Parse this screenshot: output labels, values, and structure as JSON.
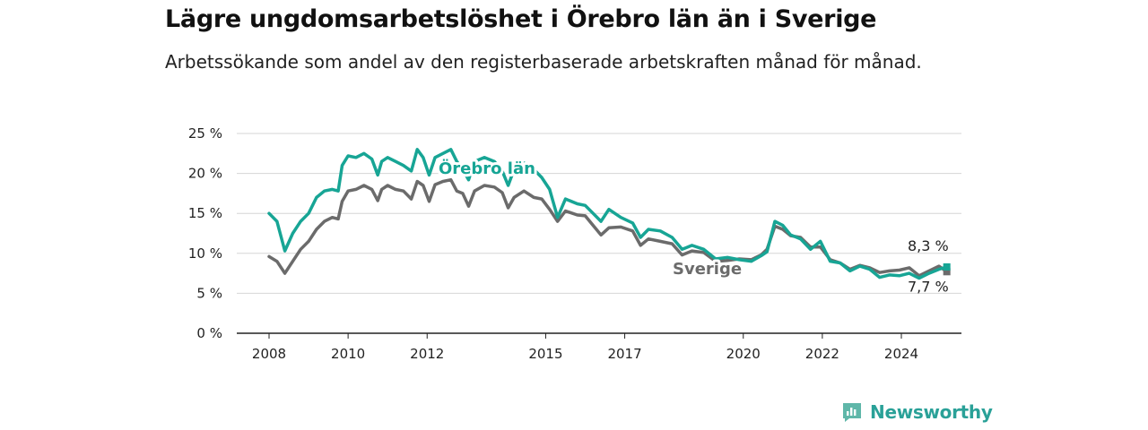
{
  "title": "Lägre ungdomsarbetslöshet i Örebro län än i Sverige",
  "subtitle": "Arbetssökande som andel av den registerbaserade arbetskraften månad för månad.",
  "brand": {
    "name": "Newsworthy",
    "color": "#26a69a",
    "icon": "newsworthy-logo-icon"
  },
  "chart_data": {
    "type": "line",
    "title": "Lägre ungdomsarbetslöshet i Örebro län än i Sverige",
    "xlabel": "",
    "ylabel": "",
    "xlim": [
      2008.0,
      2025.5
    ],
    "ylim": [
      0,
      25
    ],
    "y_ticks": [
      0,
      5,
      10,
      15,
      20,
      25
    ],
    "y_tick_labels": [
      "0 %",
      "5 %",
      "10 %",
      "15 %",
      "20 %",
      "25 %"
    ],
    "x_ticks": [
      2008,
      2010,
      2012,
      2015,
      2017,
      2020,
      2022,
      2024
    ],
    "x_tick_labels": [
      "2008",
      "2010",
      "2012",
      "2015",
      "2017",
      "2020",
      "2022",
      "2024"
    ],
    "grid": "horizontal",
    "series": [
      {
        "name": "Sverige",
        "color": "#6b6b6b",
        "end_label": "7,7 %",
        "points": [
          [
            2008.0,
            9.6
          ],
          [
            2008.2,
            9.0
          ],
          [
            2008.4,
            7.5
          ],
          [
            2008.6,
            9.0
          ],
          [
            2008.8,
            10.5
          ],
          [
            2009.0,
            11.5
          ],
          [
            2009.2,
            13.0
          ],
          [
            2009.4,
            14.0
          ],
          [
            2009.6,
            14.5
          ],
          [
            2009.75,
            14.3
          ],
          [
            2009.85,
            16.5
          ],
          [
            2010.0,
            17.8
          ],
          [
            2010.2,
            18.0
          ],
          [
            2010.4,
            18.5
          ],
          [
            2010.6,
            18.0
          ],
          [
            2010.75,
            16.6
          ],
          [
            2010.85,
            18.0
          ],
          [
            2011.0,
            18.5
          ],
          [
            2011.2,
            18.0
          ],
          [
            2011.4,
            17.8
          ],
          [
            2011.6,
            16.8
          ],
          [
            2011.75,
            19.0
          ],
          [
            2011.9,
            18.5
          ],
          [
            2012.05,
            16.5
          ],
          [
            2012.2,
            18.6
          ],
          [
            2012.4,
            19.0
          ],
          [
            2012.6,
            19.2
          ],
          [
            2012.75,
            17.8
          ],
          [
            2012.9,
            17.5
          ],
          [
            2013.05,
            15.9
          ],
          [
            2013.2,
            17.8
          ],
          [
            2013.45,
            18.5
          ],
          [
            2013.7,
            18.3
          ],
          [
            2013.9,
            17.6
          ],
          [
            2014.05,
            15.7
          ],
          [
            2014.2,
            17.0
          ],
          [
            2014.45,
            17.8
          ],
          [
            2014.7,
            17.0
          ],
          [
            2014.9,
            16.8
          ],
          [
            2015.1,
            15.5
          ],
          [
            2015.3,
            14.0
          ],
          [
            2015.5,
            15.3
          ],
          [
            2015.8,
            14.8
          ],
          [
            2016.0,
            14.7
          ],
          [
            2016.2,
            13.5
          ],
          [
            2016.4,
            12.3
          ],
          [
            2016.6,
            13.2
          ],
          [
            2016.9,
            13.3
          ],
          [
            2017.2,
            12.8
          ],
          [
            2017.4,
            11.0
          ],
          [
            2017.6,
            11.8
          ],
          [
            2017.9,
            11.5
          ],
          [
            2018.2,
            11.2
          ],
          [
            2018.45,
            9.8
          ],
          [
            2018.7,
            10.3
          ],
          [
            2019.0,
            10.1
          ],
          [
            2019.3,
            9.0
          ],
          [
            2019.6,
            9.1
          ],
          [
            2019.9,
            9.3
          ],
          [
            2020.2,
            9.2
          ],
          [
            2020.45,
            9.8
          ],
          [
            2020.6,
            10.5
          ],
          [
            2020.8,
            13.4
          ],
          [
            2021.0,
            13.0
          ],
          [
            2021.2,
            12.2
          ],
          [
            2021.45,
            12.0
          ],
          [
            2021.7,
            10.8
          ],
          [
            2021.95,
            10.8
          ],
          [
            2022.2,
            9.2
          ],
          [
            2022.45,
            8.8
          ],
          [
            2022.7,
            8.0
          ],
          [
            2022.95,
            8.5
          ],
          [
            2023.2,
            8.2
          ],
          [
            2023.45,
            7.6
          ],
          [
            2023.7,
            7.8
          ],
          [
            2023.95,
            7.9
          ],
          [
            2024.2,
            8.2
          ],
          [
            2024.45,
            7.2
          ],
          [
            2024.7,
            7.8
          ],
          [
            2024.95,
            8.4
          ],
          [
            2025.15,
            7.7
          ]
        ]
      },
      {
        "name": "Örebro län",
        "color": "#17a595",
        "end_label": "8,3 %",
        "points": [
          [
            2008.0,
            15.0
          ],
          [
            2008.2,
            14.0
          ],
          [
            2008.4,
            10.3
          ],
          [
            2008.6,
            12.5
          ],
          [
            2008.8,
            14.0
          ],
          [
            2009.0,
            15.0
          ],
          [
            2009.2,
            17.0
          ],
          [
            2009.4,
            17.8
          ],
          [
            2009.6,
            18.0
          ],
          [
            2009.75,
            17.8
          ],
          [
            2009.85,
            21.0
          ],
          [
            2010.0,
            22.2
          ],
          [
            2010.2,
            22.0
          ],
          [
            2010.4,
            22.5
          ],
          [
            2010.6,
            21.8
          ],
          [
            2010.75,
            19.8
          ],
          [
            2010.85,
            21.5
          ],
          [
            2011.0,
            22.0
          ],
          [
            2011.2,
            21.5
          ],
          [
            2011.4,
            21.0
          ],
          [
            2011.6,
            20.3
          ],
          [
            2011.75,
            23.0
          ],
          [
            2011.9,
            22.0
          ],
          [
            2012.05,
            19.8
          ],
          [
            2012.2,
            22.0
          ],
          [
            2012.4,
            22.5
          ],
          [
            2012.6,
            23.0
          ],
          [
            2012.75,
            21.5
          ],
          [
            2012.9,
            20.5
          ],
          [
            2013.05,
            19.2
          ],
          [
            2013.2,
            21.5
          ],
          [
            2013.45,
            22.0
          ],
          [
            2013.7,
            21.5
          ],
          [
            2013.9,
            20.3
          ],
          [
            2014.05,
            18.5
          ],
          [
            2014.2,
            20.5
          ],
          [
            2014.45,
            21.3
          ],
          [
            2014.7,
            20.5
          ],
          [
            2014.9,
            19.5
          ],
          [
            2015.1,
            18.0
          ],
          [
            2015.3,
            14.5
          ],
          [
            2015.5,
            16.8
          ],
          [
            2015.8,
            16.2
          ],
          [
            2016.0,
            16.0
          ],
          [
            2016.2,
            15.0
          ],
          [
            2016.4,
            14.0
          ],
          [
            2016.6,
            15.5
          ],
          [
            2016.9,
            14.5
          ],
          [
            2017.2,
            13.8
          ],
          [
            2017.4,
            12.0
          ],
          [
            2017.6,
            13.0
          ],
          [
            2017.9,
            12.8
          ],
          [
            2018.2,
            12.0
          ],
          [
            2018.45,
            10.5
          ],
          [
            2018.7,
            11.0
          ],
          [
            2019.0,
            10.5
          ],
          [
            2019.3,
            9.3
          ],
          [
            2019.6,
            9.5
          ],
          [
            2019.9,
            9.2
          ],
          [
            2020.2,
            9.0
          ],
          [
            2020.45,
            9.7
          ],
          [
            2020.6,
            10.2
          ],
          [
            2020.8,
            14.0
          ],
          [
            2021.0,
            13.5
          ],
          [
            2021.2,
            12.3
          ],
          [
            2021.45,
            11.8
          ],
          [
            2021.7,
            10.5
          ],
          [
            2021.95,
            11.5
          ],
          [
            2022.2,
            9.0
          ],
          [
            2022.45,
            8.8
          ],
          [
            2022.7,
            7.8
          ],
          [
            2022.95,
            8.4
          ],
          [
            2023.2,
            8.0
          ],
          [
            2023.45,
            7.0
          ],
          [
            2023.7,
            7.3
          ],
          [
            2023.95,
            7.2
          ],
          [
            2024.2,
            7.5
          ],
          [
            2024.45,
            6.9
          ],
          [
            2024.7,
            7.5
          ],
          [
            2024.95,
            8.0
          ],
          [
            2025.15,
            8.3
          ]
        ]
      }
    ]
  }
}
